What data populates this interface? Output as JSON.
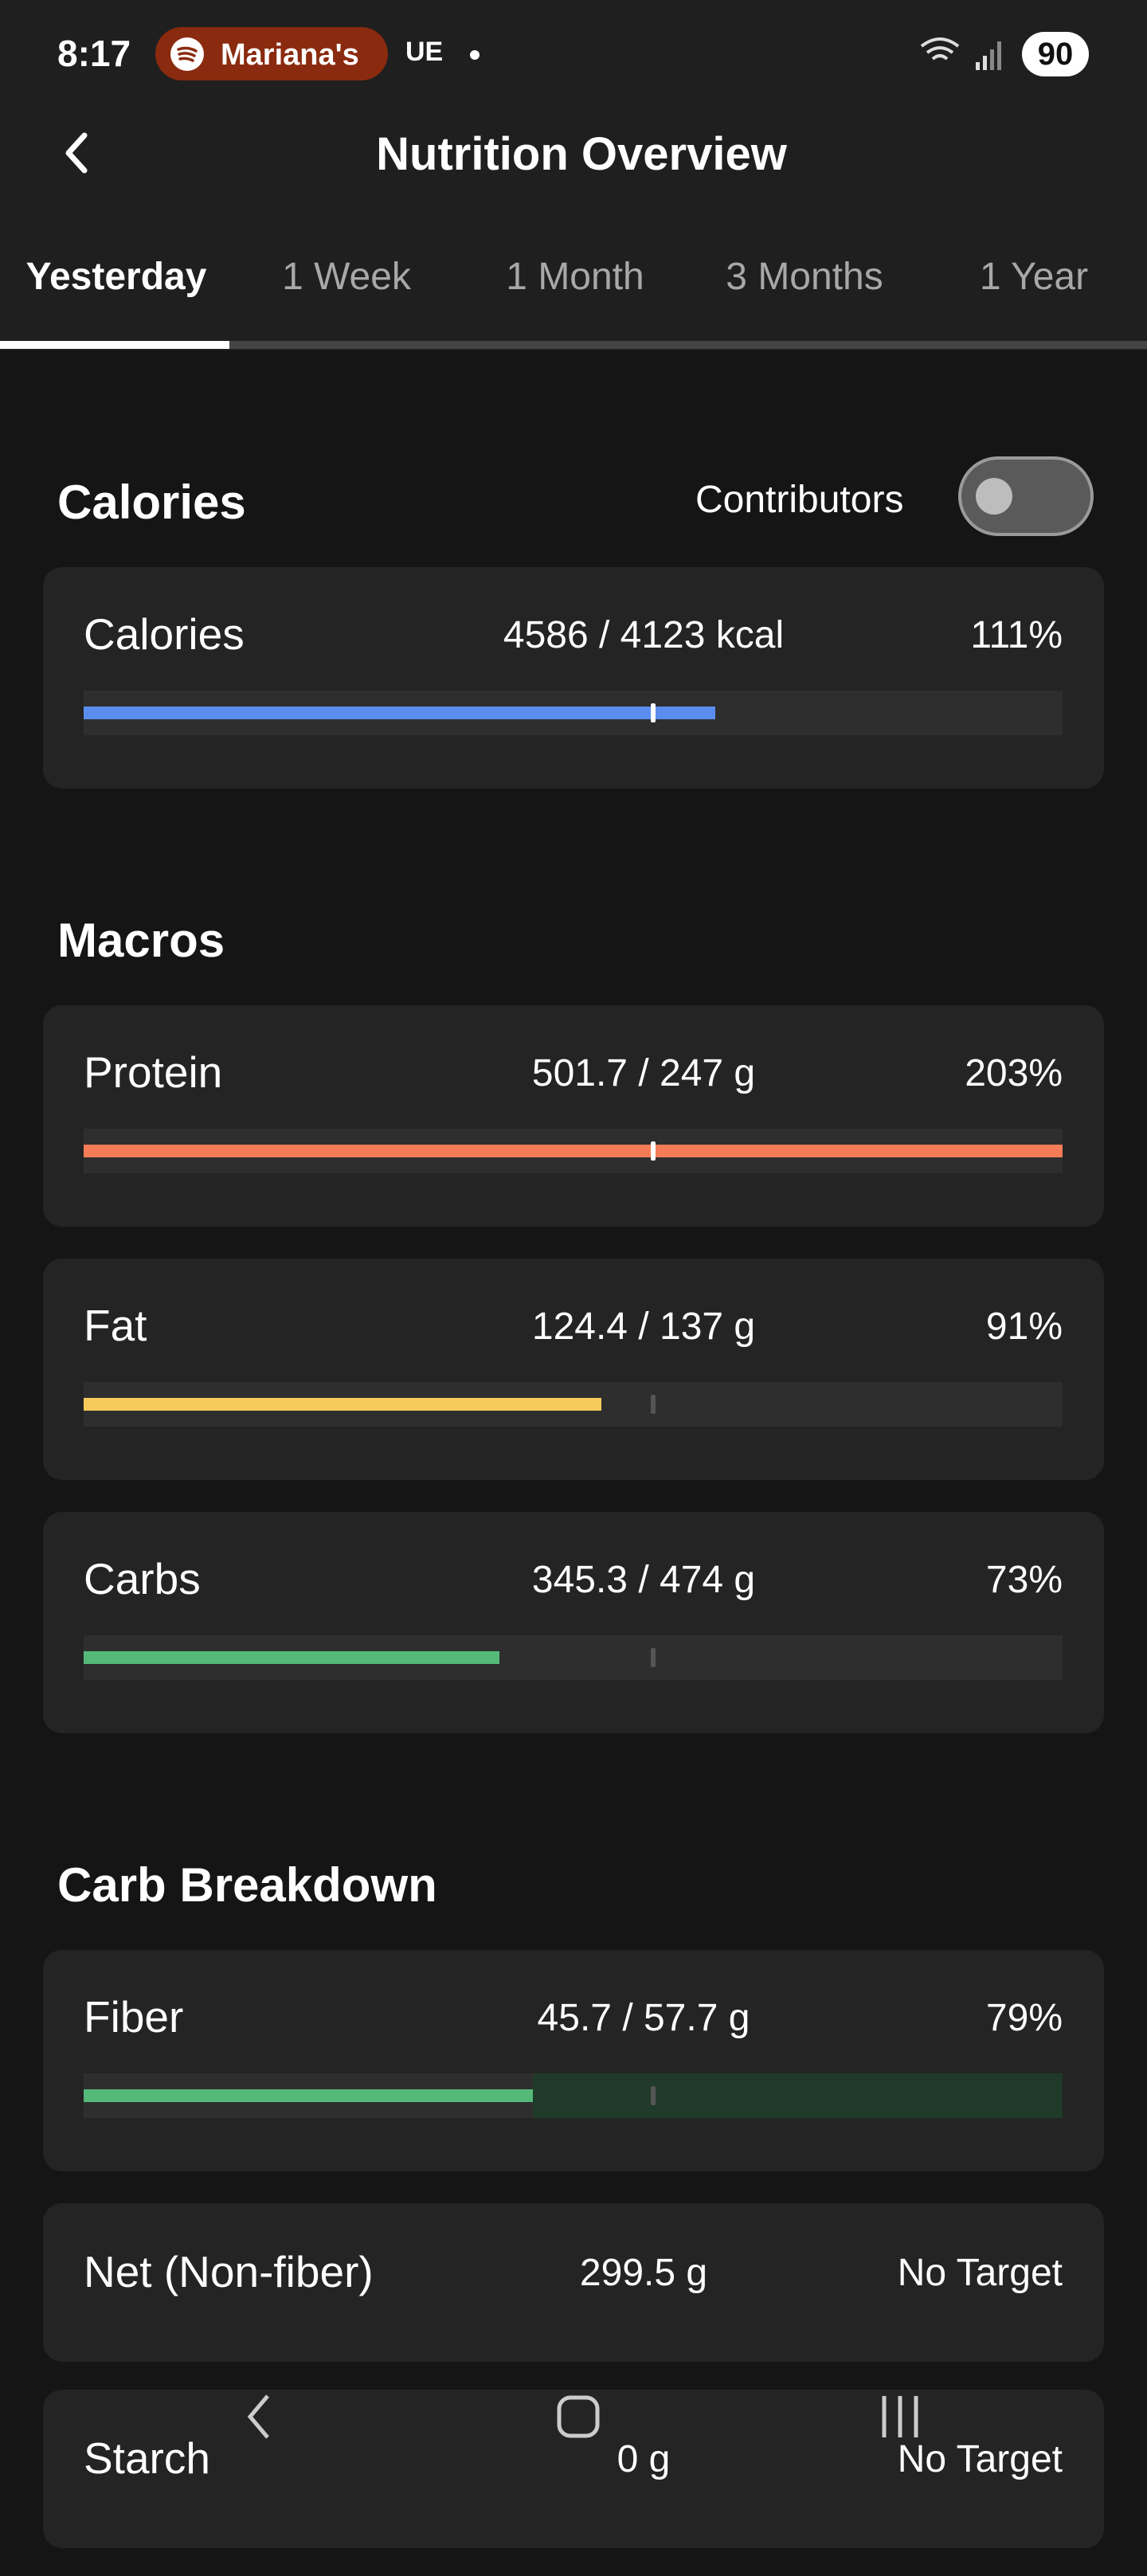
{
  "status_bar": {
    "time": "8:17",
    "media": "Mariana's",
    "carrier": "UE",
    "battery": "90"
  },
  "header": {
    "title": "Nutrition Overview"
  },
  "tabs": {
    "items": [
      "Yesterday",
      "1 Week",
      "1 Month",
      "3 Months",
      "1 Year"
    ],
    "selected": 0
  },
  "progress_scale": {
    "xlim": [
      0,
      172
    ],
    "target": 100
  },
  "sections": [
    {
      "title": "Calories",
      "toggle_label": "Contributors",
      "toggle_on": false,
      "items": [
        {
          "name": "Calories",
          "amount": "4586 / 4123 kcal",
          "percent": 111,
          "percent_label": "111%",
          "color": "#5b8def"
        }
      ]
    },
    {
      "title": "Macros",
      "items": [
        {
          "name": "Protein",
          "amount": "501.7 / 247 g",
          "percent": 203,
          "percent_label": "203%",
          "color": "#f47c57"
        },
        {
          "name": "Fat",
          "amount": "124.4 / 137 g",
          "percent": 91,
          "percent_label": "91%",
          "color": "#f6cb5c"
        },
        {
          "name": "Carbs",
          "amount": "345.3 / 474 g",
          "percent": 73,
          "percent_label": "73%",
          "color": "#55b97a"
        }
      ]
    },
    {
      "title": "Carb Breakdown",
      "items": [
        {
          "name": "Fiber",
          "amount": "45.7 / 57.7 g",
          "percent": 79,
          "percent_label": "79%",
          "color": "#55b97a",
          "track_color": "#1f3a29"
        },
        {
          "name": "Net (Non-fiber)",
          "amount": "299.5 g",
          "target": "No Target"
        },
        {
          "name": "Starch",
          "amount": "0 g",
          "target": "No Target"
        }
      ]
    }
  ]
}
